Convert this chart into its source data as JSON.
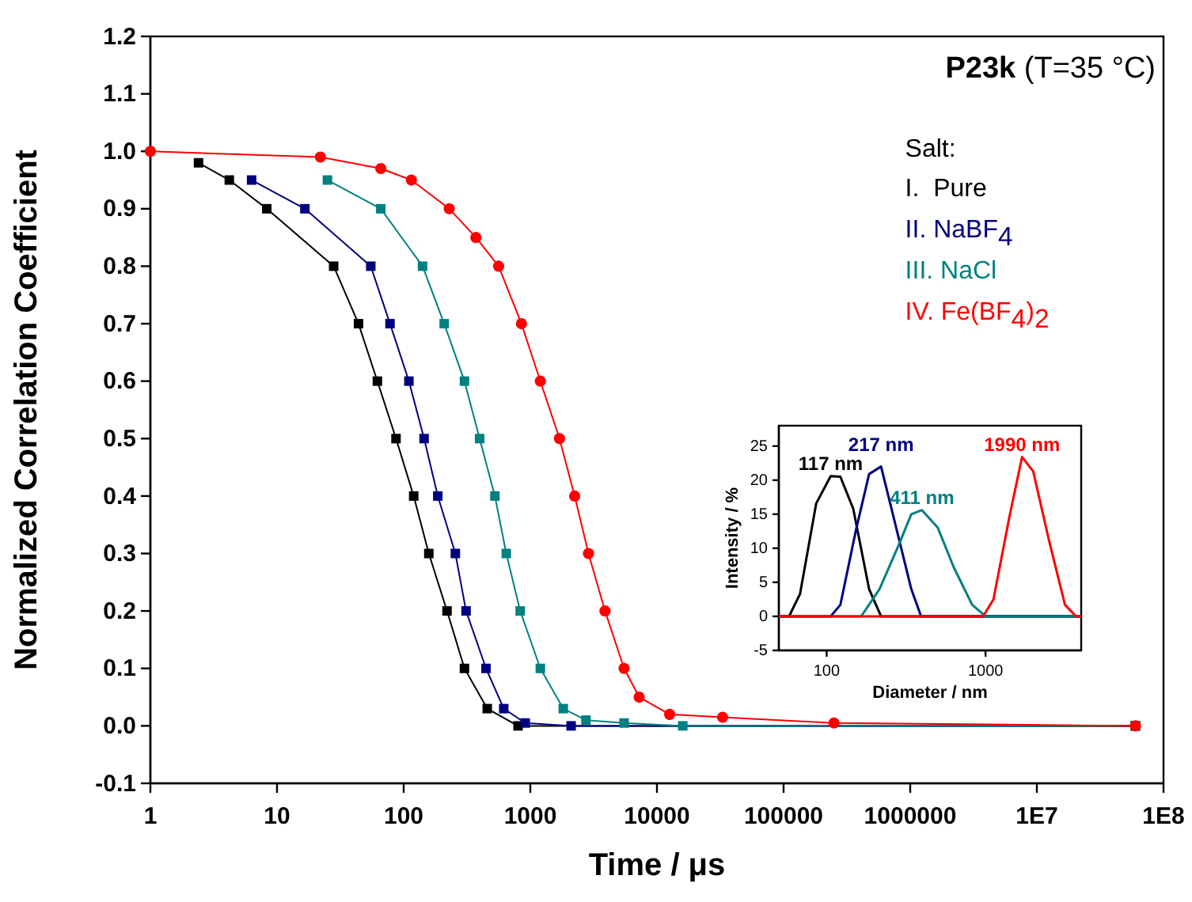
{
  "chart_data": [
    {
      "type": "line",
      "title": "P23k (T=35 °C)",
      "xlabel": "Time / μs",
      "ylabel": "Normalized Correlation Coefficient",
      "legend_title": "Salt:",
      "legend": "top right",
      "log": "x",
      "xlim": [
        1,
        100000000
      ],
      "ylim": [
        -0.1,
        1.2
      ],
      "xticks": [
        1,
        10,
        100,
        1000,
        10000,
        100000,
        1000000,
        {
          "value": 10000000,
          "label": "1E7"
        },
        {
          "value": 100000000,
          "label": "1E8"
        }
      ],
      "yticks": [
        {
          "value": -0.1,
          "label": "-0.1"
        },
        {
          "value": 0,
          "label": "0.0"
        },
        0.1,
        0.2,
        0.3,
        0.4,
        0.5,
        0.6,
        0.7,
        0.8,
        0.9,
        {
          "value": 1,
          "label": "1.0"
        },
        1.1,
        1.2
      ],
      "series": [
        {
          "name": "I.  Pure",
          "color": "#000000",
          "marker": "square",
          "x": [
            2.4,
            4.2,
            8.3,
            28,
            44,
            62,
            87,
            120,
            158,
            220,
            302,
            457,
            800,
            60000000
          ],
          "values": [
            0.98,
            0.95,
            0.9,
            0.8,
            0.7,
            0.6,
            0.5,
            0.4,
            0.3,
            0.2,
            0.1,
            0.03,
            0,
            0
          ]
        },
        {
          "name": "II. NaBF$_{4}$",
          "color": "#000080",
          "marker": "square",
          "x": [
            6.3,
            16.6,
            55,
            78,
            110,
            145,
            186,
            256,
            311,
            447,
            617,
            912,
            2100,
            60000000
          ],
          "values": [
            0.95,
            0.9,
            0.8,
            0.7,
            0.6,
            0.5,
            0.4,
            0.3,
            0.2,
            0.1,
            0.03,
            0.005,
            0,
            0
          ]
        },
        {
          "name": "III. NaCl",
          "color": "#008080",
          "marker": "square",
          "x": [
            25,
            66,
            141,
            209,
            302,
            398,
            525,
            646,
            832,
            1200,
            1820,
            2750,
            5500,
            16000,
            60000000
          ],
          "values": [
            0.95,
            0.9,
            0.8,
            0.7,
            0.6,
            0.5,
            0.4,
            0.3,
            0.2,
            0.1,
            0.03,
            0.01,
            0.005,
            0,
            0
          ]
        },
        {
          "name": "IV. Fe(BF$_{4}$)$_{2}$",
          "color": "#ff0000",
          "marker": "circle",
          "x": [
            1,
            22,
            66,
            115,
            229,
            372,
            562,
            851,
            1200,
            1700,
            2240,
            2880,
            3890,
            5500,
            7240,
            12600,
            33000,
            250000,
            60000000
          ],
          "values": [
            1,
            0.99,
            0.97,
            0.95,
            0.9,
            0.85,
            0.8,
            0.7,
            0.6,
            0.5,
            0.4,
            0.3,
            0.2,
            0.1,
            0.05,
            0.02,
            0.015,
            0.005,
            0
          ]
        }
      ]
    },
    {
      "type": "line",
      "xlabel": "Diameter / nm",
      "ylabel": "Intensity / %",
      "legend": false,
      "log": "x",
      "xlim": [
        50,
        4000
      ],
      "ylim": [
        -5,
        28
      ],
      "xticks": [
        100,
        1000
      ],
      "yticks": [
        -5,
        0,
        5,
        10,
        15,
        20,
        25
      ],
      "series": [
        {
          "name": "117 nm",
          "color": "#000000",
          "x": [
            50,
            58,
            68,
            86,
            106,
            122,
            147,
            185,
            220,
            4000
          ],
          "values": [
            0,
            0,
            3.3,
            16.6,
            20.6,
            20.5,
            15.8,
            4,
            0,
            0
          ]
        },
        {
          "name": "217 nm",
          "color": "#000080",
          "x": [
            50,
            106,
            122,
            153,
            185,
            220,
            261,
            341,
            393,
            4000
          ],
          "values": [
            0,
            0,
            1.7,
            12.7,
            20.9,
            22,
            15,
            4,
            0,
            0
          ]
        },
        {
          "name": "411 nm",
          "color": "#008080",
          "x": [
            50,
            165,
            215,
            282,
            341,
            398,
            501,
            631,
            824,
            1000,
            4000
          ],
          "values": [
            0,
            0,
            4,
            10.3,
            15,
            15.6,
            13,
            7.2,
            1.7,
            0,
            0
          ]
        },
        {
          "name": "1990 nm",
          "color": "#ff0000",
          "x": [
            50,
            966,
            1122,
            1413,
            1698,
            1995,
            2512,
            3162,
            3715,
            4000
          ],
          "values": [
            0,
            0,
            2.5,
            14.6,
            23.4,
            21.3,
            11.1,
            1.7,
            0,
            0
          ]
        }
      ]
    }
  ]
}
